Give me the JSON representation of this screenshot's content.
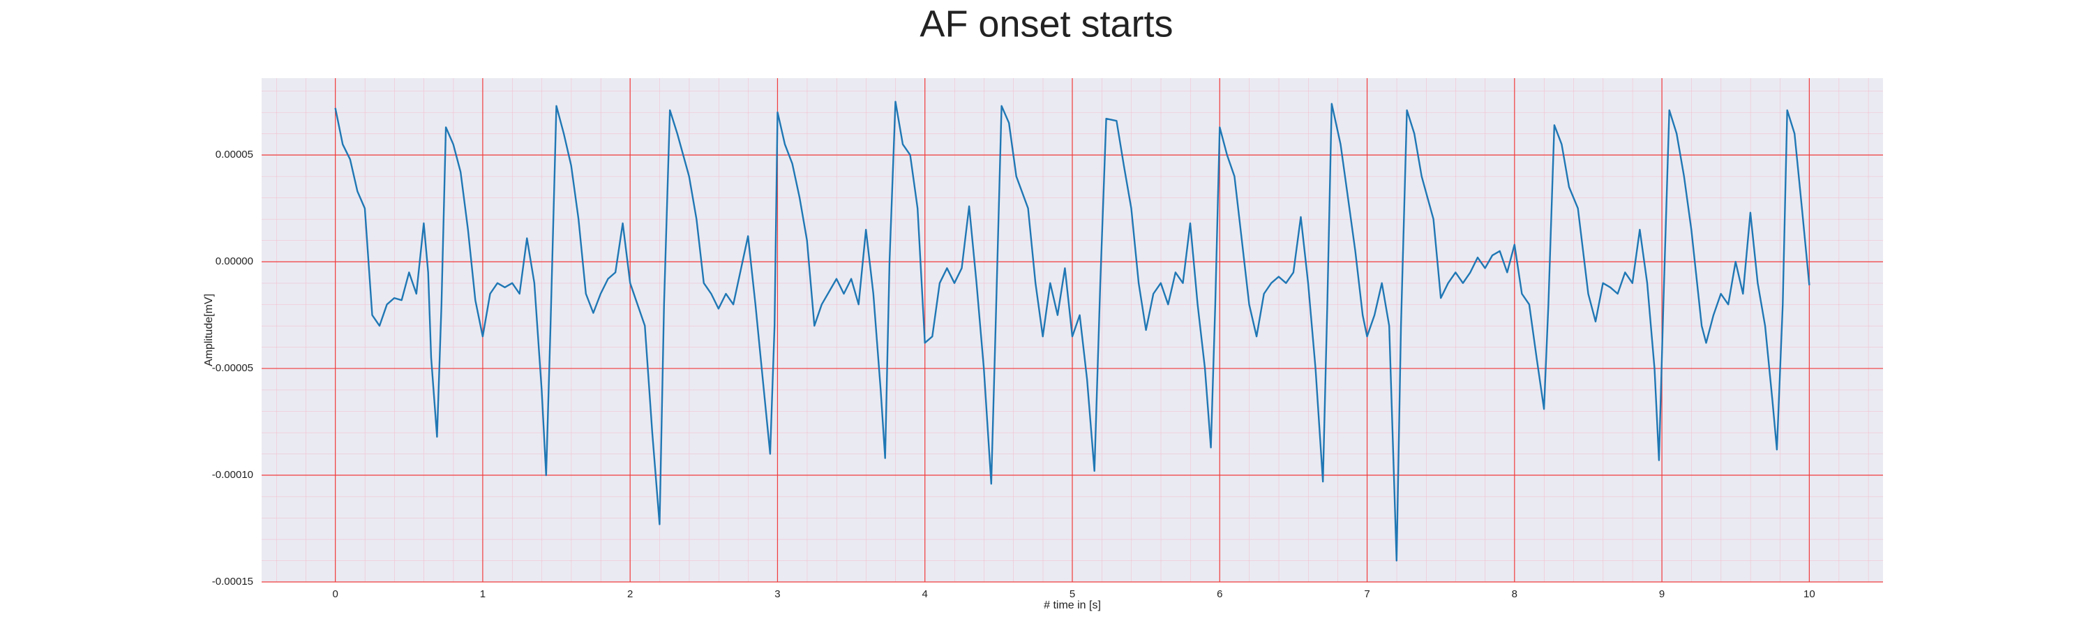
{
  "chart_data": {
    "type": "line",
    "title": "AF onset starts",
    "xlabel": "# time in [s]",
    "ylabel": "Amplitude[mV]",
    "xlim": [
      -0.5,
      10.5
    ],
    "ylim": [
      -0.00015,
      8.6e-05
    ],
    "xticks": [
      0,
      1,
      2,
      3,
      4,
      5,
      6,
      7,
      8,
      9,
      10
    ],
    "yticks": [
      {
        "value": -0.00015,
        "label": "-0.00015"
      },
      {
        "value": -0.0001,
        "label": "-0.00010"
      },
      {
        "value": -5e-05,
        "label": "-0.00005"
      },
      {
        "value": 0,
        "label": "0.00000"
      },
      {
        "value": 5e-05,
        "label": "0.00005"
      }
    ],
    "grid": true,
    "minor_grid": true,
    "series": [
      {
        "color": "#1f77b4",
        "x": [
          0,
          0.05,
          0.1,
          0.15,
          0.2,
          0.25,
          0.3,
          0.35,
          0.4,
          0.45,
          0.5,
          0.55,
          0.6,
          0.63,
          0.65,
          0.69,
          0.72,
          0.75,
          0.8,
          0.85,
          0.9,
          0.95,
          1.0,
          1.05,
          1.1,
          1.15,
          1.2,
          1.25,
          1.3,
          1.35,
          1.4,
          1.43,
          1.46,
          1.5,
          1.55,
          1.6,
          1.65,
          1.7,
          1.75,
          1.8,
          1.85,
          1.9,
          1.95,
          2.0,
          2.1,
          2.15,
          2.2,
          2.23,
          2.27,
          2.32,
          2.4,
          2.45,
          2.5,
          2.55,
          2.6,
          2.65,
          2.7,
          2.8,
          2.85,
          2.9,
          2.95,
          2.98,
          3.0,
          3.05,
          3.1,
          3.15,
          3.2,
          3.25,
          3.3,
          3.4,
          3.45,
          3.5,
          3.55,
          3.6,
          3.65,
          3.7,
          3.73,
          3.76,
          3.8,
          3.85,
          3.9,
          3.95,
          4.0,
          4.05,
          4.1,
          4.15,
          4.2,
          4.25,
          4.3,
          4.35,
          4.4,
          4.45,
          4.48,
          4.52,
          4.57,
          4.62,
          4.7,
          4.75,
          4.8,
          4.85,
          4.9,
          4.95,
          5.0,
          5.05,
          5.1,
          5.15,
          5.19,
          5.23,
          5.3,
          5.35,
          5.4,
          5.45,
          5.5,
          5.55,
          5.6,
          5.65,
          5.7,
          5.75,
          5.8,
          5.85,
          5.9,
          5.94,
          5.97,
          6.0,
          6.05,
          6.1,
          6.15,
          6.2,
          6.25,
          6.3,
          6.35,
          6.4,
          6.45,
          6.5,
          6.55,
          6.6,
          6.65,
          6.7,
          6.73,
          6.76,
          6.82,
          6.87,
          6.92,
          6.97,
          7.0,
          7.05,
          7.1,
          7.15,
          7.2,
          7.23,
          7.27,
          7.32,
          7.37,
          7.45,
          7.5,
          7.55,
          7.6,
          7.65,
          7.7,
          7.75,
          7.8,
          7.85,
          7.9,
          7.95,
          8.0,
          8.05,
          8.1,
          8.15,
          8.2,
          8.23,
          8.27,
          8.32,
          8.37,
          8.43,
          8.5,
          8.55,
          8.6,
          8.65,
          8.7,
          8.75,
          8.8,
          8.85,
          8.9,
          8.95,
          8.98,
          9.01,
          9.05,
          9.1,
          9.15,
          9.2,
          9.27,
          9.3,
          9.35,
          9.4,
          9.45,
          9.5,
          9.55,
          9.6,
          9.65,
          9.7,
          9.75,
          9.78,
          9.82,
          9.85,
          9.9,
          9.95,
          10.0
        ],
        "values": [
          7.2e-05,
          5.5e-05,
          4.8e-05,
          3.3e-05,
          2.5e-05,
          -2.5e-05,
          -3e-05,
          -2e-05,
          -1.7e-05,
          -1.8e-05,
          -5e-06,
          -1.5e-05,
          1.8e-05,
          -5e-06,
          -4.5e-05,
          -8.2e-05,
          -2e-05,
          6.3e-05,
          5.5e-05,
          4.2e-05,
          1.5e-05,
          -1.8e-05,
          -3.5e-05,
          -1.5e-05,
          -1e-05,
          -1.2e-05,
          -1e-05,
          -1.5e-05,
          1.1e-05,
          -1e-05,
          -6e-05,
          -0.0001,
          -3e-05,
          7.3e-05,
          6e-05,
          4.5e-05,
          2e-05,
          -1.5e-05,
          -2.4e-05,
          -1.5e-05,
          -8e-06,
          -5e-06,
          1.8e-05,
          -1e-05,
          -3e-05,
          -8e-05,
          -0.000123,
          -2e-05,
          7.1e-05,
          6e-05,
          4e-05,
          2e-05,
          -1e-05,
          -1.5e-05,
          -2.2e-05,
          -1.5e-05,
          -2e-05,
          1.2e-05,
          -2e-05,
          -5.5e-05,
          -9e-05,
          -3e-05,
          7e-05,
          5.5e-05,
          4.6e-05,
          3e-05,
          1e-05,
          -3e-05,
          -2e-05,
          -8e-06,
          -1.5e-05,
          -8e-06,
          -2e-05,
          1.5e-05,
          -1.5e-05,
          -6e-05,
          -9.2e-05,
          0,
          7.5e-05,
          5.5e-05,
          5e-05,
          2.5e-05,
          -3.8e-05,
          -3.5e-05,
          -1e-05,
          -3e-06,
          -1e-05,
          -3e-06,
          2.6e-05,
          -1e-05,
          -5e-05,
          -0.000104,
          -3e-05,
          7.3e-05,
          6.5e-05,
          4e-05,
          2.5e-05,
          -1e-05,
          -3.5e-05,
          -1e-05,
          -2.5e-05,
          -3e-06,
          -3.5e-05,
          -2.5e-05,
          -5.5e-05,
          -9.8e-05,
          -1e-05,
          6.7e-05,
          6.6e-05,
          4.5e-05,
          2.5e-05,
          -1e-05,
          -3.2e-05,
          -1.5e-05,
          -1e-05,
          -2e-05,
          -5e-06,
          -1e-05,
          1.8e-05,
          -2e-05,
          -5e-05,
          -8.7e-05,
          -2e-05,
          6.3e-05,
          5e-05,
          4e-05,
          1e-05,
          -2e-05,
          -3.5e-05,
          -1.5e-05,
          -1e-05,
          -7e-06,
          -1e-05,
          -5e-06,
          2.1e-05,
          -1e-05,
          -5e-05,
          -0.000103,
          -2e-05,
          7.4e-05,
          5.5e-05,
          3e-05,
          5e-06,
          -2.5e-05,
          -3.5e-05,
          -2.5e-05,
          -1e-05,
          -3e-05,
          -0.00014,
          -3e-05,
          7.1e-05,
          6e-05,
          4e-05,
          2e-05,
          -1.7e-05,
          -1e-05,
          -5e-06,
          -1e-05,
          -5e-06,
          2e-06,
          -3e-06,
          3e-06,
          5e-06,
          -5e-06,
          8e-06,
          -1.5e-05,
          -2e-05,
          -4.5e-05,
          -6.9e-05,
          -2e-05,
          6.4e-05,
          5.5e-05,
          3.5e-05,
          2.5e-05,
          -1.5e-05,
          -2.8e-05,
          -1e-05,
          -1.2e-05,
          -1.5e-05,
          -5e-06,
          -1e-05,
          1.5e-05,
          -1e-05,
          -5e-05,
          -9.3e-05,
          -2e-05,
          7.1e-05,
          6e-05,
          4e-05,
          1.5e-05,
          -3e-05,
          -3.8e-05,
          -2.5e-05,
          -1.5e-05,
          -2e-05,
          0,
          -1.5e-05,
          2.3e-05,
          -1e-05,
          -3e-05,
          -6.5e-05,
          -8.8e-05,
          -2e-05,
          7.1e-05,
          6e-05,
          2.5e-05,
          -1.1e-05
        ]
      }
    ]
  }
}
